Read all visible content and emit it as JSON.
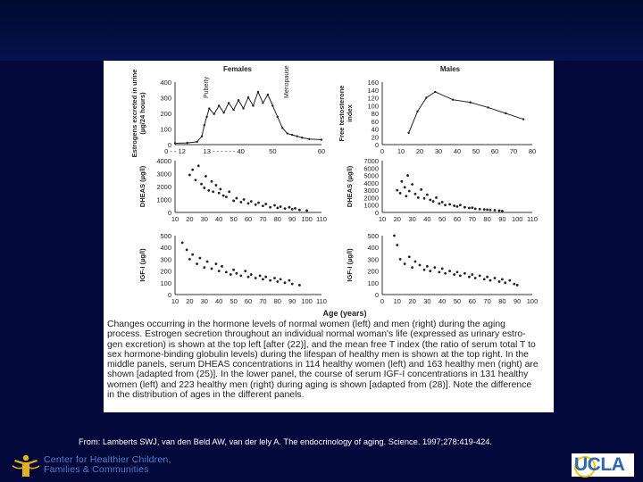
{
  "figure": {
    "panel_titles": {
      "females": "Females",
      "males": "Males"
    },
    "x_axis_title": "Age (years)",
    "chart_data": [
      {
        "type": "line",
        "panel": "top-left",
        "ylabel_lines": [
          "Estrogens excreted in urine",
          "(µg/24 hours)"
        ],
        "y_ticks": [
          "400",
          "300",
          "200",
          "100",
          "0"
        ],
        "x_ticks": [
          "0 - - 12",
          "13 - - - - - - 40",
          "50",
          "60"
        ],
        "ylim": [
          0,
          450
        ],
        "annotations": [
          "Puberty",
          "Menopause"
        ],
        "x": [
          0,
          5,
          9,
          11,
          12,
          13,
          14,
          16,
          18,
          20,
          22,
          24,
          26,
          28,
          30,
          32,
          34,
          36,
          38,
          40,
          42,
          44,
          46,
          48,
          50,
          52,
          55,
          60
        ],
        "values": [
          10,
          12,
          20,
          60,
          140,
          200,
          260,
          220,
          280,
          230,
          300,
          250,
          320,
          260,
          340,
          280,
          380,
          300,
          360,
          280,
          200,
          120,
          80,
          70,
          60,
          50,
          40,
          35
        ]
      },
      {
        "type": "line",
        "panel": "top-right",
        "ylabel_lines": [
          "Free testosterone",
          "index"
        ],
        "y_ticks": [
          "160",
          "140",
          "120",
          "100",
          "80",
          "60",
          "40",
          "20",
          "0"
        ],
        "x_ticks": [
          "0",
          "10",
          "20",
          "30",
          "40",
          "50",
          "60",
          "70",
          "80"
        ],
        "ylim": [
          0,
          160
        ],
        "x": [
          15,
          20,
          25,
          30,
          40,
          50,
          60,
          70,
          80
        ],
        "values": [
          30,
          85,
          120,
          135,
          115,
          108,
          95,
          80,
          65
        ]
      },
      {
        "type": "scatter",
        "panel": "middle-left",
        "ylabel_lines": [
          "DHEAS (µg/l)"
        ],
        "y_ticks": [
          "4000",
          "3000",
          "2000",
          "1000",
          "0"
        ],
        "x_ticks": [
          "10",
          "20",
          "30",
          "40",
          "50",
          "60",
          "70",
          "80",
          "90",
          "100",
          "110"
        ],
        "ylim": [
          0,
          4000
        ],
        "x": [
          20,
          22,
          24,
          26,
          28,
          30,
          31,
          33,
          35,
          36,
          38,
          40,
          41,
          43,
          45,
          47,
          50,
          52,
          55,
          57,
          60,
          62,
          65,
          67,
          70,
          72,
          75,
          78,
          80,
          82,
          85,
          88,
          90,
          92,
          95,
          100
        ],
        "values": [
          2900,
          3300,
          2500,
          3600,
          2200,
          1900,
          2800,
          1700,
          2400,
          1600,
          2100,
          1500,
          1800,
          1300,
          1200,
          1600,
          900,
          1100,
          800,
          1000,
          700,
          850,
          600,
          750,
          500,
          650,
          400,
          550,
          350,
          450,
          300,
          400,
          250,
          320,
          200,
          150
        ]
      },
      {
        "type": "scatter",
        "panel": "middle-right",
        "ylabel_lines": [
          "DHEAS (µg/l)"
        ],
        "y_ticks": [
          "7000",
          "6000",
          "5000",
          "4000",
          "3000",
          "2000",
          "1000",
          "0"
        ],
        "x_ticks": [
          "10",
          "20",
          "30",
          "40",
          "50",
          "60",
          "70",
          "80",
          "90",
          "100",
          "110"
        ],
        "ylim": [
          0,
          7000
        ],
        "x": [
          20,
          22,
          23,
          25,
          26,
          27,
          28,
          30,
          32,
          34,
          36,
          38,
          40,
          42,
          44,
          46,
          48,
          50,
          52,
          55,
          58,
          60,
          62,
          65,
          68,
          70,
          72,
          75,
          78,
          80,
          82,
          85,
          88,
          90
        ],
        "values": [
          3000,
          2600,
          4200,
          3400,
          2200,
          5000,
          2900,
          3800,
          2500,
          2000,
          3100,
          1900,
          2400,
          1700,
          1500,
          2000,
          1200,
          1400,
          1000,
          1100,
          900,
          800,
          1000,
          700,
          600,
          650,
          500,
          450,
          400,
          380,
          350,
          300,
          250,
          200
        ]
      },
      {
        "type": "scatter",
        "panel": "bottom-left",
        "ylabel_lines": [
          "IGF-I (µg/l)"
        ],
        "y_ticks": [
          "500",
          "400",
          "300",
          "200",
          "100",
          "0"
        ],
        "x_ticks": [
          "10",
          "20",
          "30",
          "40",
          "50",
          "60",
          "70",
          "80",
          "90",
          "100",
          "110"
        ],
        "ylim": [
          0,
          500
        ],
        "x": [
          15,
          18,
          20,
          22,
          25,
          27,
          30,
          32,
          35,
          38,
          40,
          42,
          45,
          48,
          50,
          52,
          55,
          58,
          60,
          62,
          65,
          68,
          70,
          72,
          75,
          78,
          80,
          82,
          85,
          88,
          90,
          95
        ],
        "values": [
          440,
          380,
          300,
          340,
          260,
          310,
          230,
          280,
          220,
          260,
          200,
          240,
          190,
          170,
          210,
          180,
          160,
          200,
          150,
          170,
          140,
          160,
          130,
          150,
          120,
          140,
          110,
          130,
          100,
          120,
          90,
          80
        ]
      },
      {
        "type": "scatter",
        "panel": "bottom-right",
        "ylabel_lines": [
          "IGF-I (µg/l)"
        ],
        "y_ticks": [
          "500",
          "400",
          "300",
          "200",
          "100",
          "0"
        ],
        "x_ticks": [
          "0",
          "10",
          "20",
          "30",
          "40",
          "50",
          "60",
          "70",
          "80",
          "90",
          "100"
        ],
        "ylim": [
          0,
          500
        ],
        "x": [
          8,
          10,
          12,
          15,
          18,
          20,
          22,
          25,
          28,
          30,
          32,
          35,
          38,
          40,
          42,
          45,
          48,
          50,
          52,
          55,
          58,
          60,
          62,
          65,
          68,
          70,
          72,
          75,
          78,
          80,
          82,
          85,
          88,
          90
        ],
        "values": [
          500,
          420,
          300,
          260,
          320,
          230,
          280,
          250,
          210,
          240,
          200,
          230,
          190,
          220,
          180,
          200,
          170,
          190,
          160,
          180,
          150,
          170,
          140,
          160,
          130,
          150,
          120,
          140,
          110,
          130,
          100,
          120,
          90,
          80
        ]
      }
    ],
    "caption_lines": [
      "Changes occurring in the hormone levels of normal women (left) and men (right) during the aging",
      "process. Estrogen secretion throughout an individual normal woman's life (expressed as urinary estro-",
      "gen excretion) is shown at the top left [after (22)], and the mean free T index (the ratio of serum total T to",
      "sex hormone-binding globulin levels) during the lifespan of healthy men is shown at the top right. In the",
      "middle panels, serum DHEAS concentrations in 114 healthy women (left) and 163 healthy men (right) are",
      "shown [adapted from (25)]. In the lower panel, the course of serum IGF-I concentrations in 131 healthy",
      "women (left) and 223 healthy men (right) during aging is shown [adapted from (28)]. Note the difference",
      "in the distribution of ages in the different panels."
    ]
  },
  "citation": "From: Lamberts SWJ, van den Beld AW, van der lely A. The endocrinology of aging. Science. 1997;278:419-424.",
  "footer": {
    "org_name_lines": [
      "Center for Healthier Children,",
      "Families & Communities"
    ],
    "logo_text": "UCLA"
  }
}
